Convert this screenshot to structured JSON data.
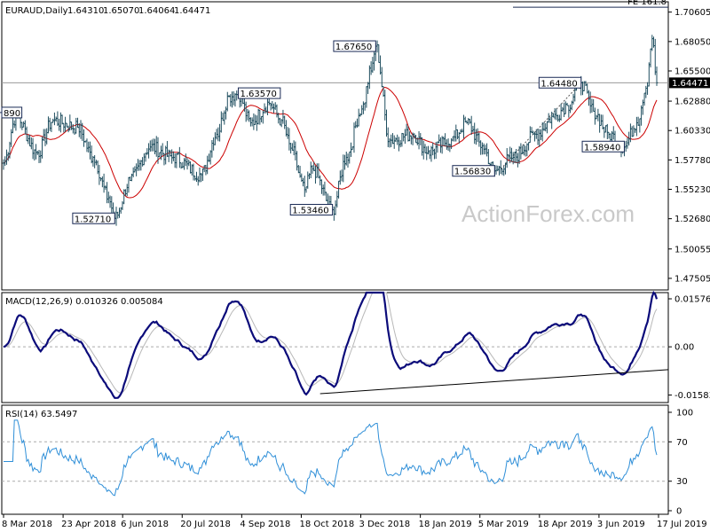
{
  "chart_data": [
    {
      "type": "bar",
      "style": "ohlc",
      "title": "EURAUD,Daily",
      "ohlc_header": [
        "1.64310",
        "1.65070",
        "1.64064",
        "1.64471"
      ],
      "ylim": [
        1.465,
        1.715
      ],
      "y_ticks": [
        "1.70605",
        "1.68050",
        "1.65500",
        "1.62880",
        "1.60330",
        "1.57780",
        "1.55230",
        "1.52680",
        "1.50055",
        "1.47505"
      ],
      "price_line": {
        "value": 1.64471,
        "label": "1.64471"
      },
      "fe_line": {
        "value": 1.7103,
        "label": "FE 161.8"
      },
      "moving_average_color": "#cc0000",
      "bar_color": "#1f4e5f",
      "x_ticks": [
        "8 Mar 2018",
        "23 Apr 2018",
        "6 Jun 2018",
        "20 Jul 2018",
        "4 Sep 2018",
        "18 Oct 2018",
        "3 Dec 2018",
        "18 Jan 2019",
        "5 Mar 2019",
        "18 Apr 2019",
        "3 Jun 2019",
        "17 Jul 2019"
      ],
      "price_anchors": [
        {
          "d": 0,
          "p": 1.575
        },
        {
          "d": 8,
          "p": 1.615
        },
        {
          "d": 22,
          "p": 1.584
        },
        {
          "d": 32,
          "p": 1.612
        },
        {
          "d": 48,
          "p": 1.606
        },
        {
          "d": 58,
          "p": 1.58
        },
        {
          "d": 68,
          "p": 1.545
        },
        {
          "d": 72,
          "p": 1.5271
        },
        {
          "d": 82,
          "p": 1.56
        },
        {
          "d": 95,
          "p": 1.589
        },
        {
          "d": 110,
          "p": 1.58
        },
        {
          "d": 128,
          "p": 1.565
        },
        {
          "d": 138,
          "p": 1.6
        },
        {
          "d": 146,
          "p": 1.633
        },
        {
          "d": 152,
          "p": 1.6357
        },
        {
          "d": 160,
          "p": 1.61
        },
        {
          "d": 172,
          "p": 1.627
        },
        {
          "d": 180,
          "p": 1.612
        },
        {
          "d": 186,
          "p": 1.588
        },
        {
          "d": 195,
          "p": 1.552
        },
        {
          "d": 200,
          "p": 1.57
        },
        {
          "d": 213,
          "p": 1.5346
        },
        {
          "d": 222,
          "p": 1.58
        },
        {
          "d": 232,
          "p": 1.622
        },
        {
          "d": 238,
          "p": 1.655
        },
        {
          "d": 241,
          "p": 1.6765
        },
        {
          "d": 250,
          "p": 1.595
        },
        {
          "d": 265,
          "p": 1.6
        },
        {
          "d": 275,
          "p": 1.585
        },
        {
          "d": 290,
          "p": 1.595
        },
        {
          "d": 300,
          "p": 1.61
        },
        {
          "d": 310,
          "p": 1.59
        },
        {
          "d": 318,
          "p": 1.5683
        },
        {
          "d": 330,
          "p": 1.58
        },
        {
          "d": 345,
          "p": 1.6
        },
        {
          "d": 356,
          "p": 1.615
        },
        {
          "d": 365,
          "p": 1.625
        },
        {
          "d": 374,
          "p": 1.6448
        },
        {
          "d": 382,
          "p": 1.62
        },
        {
          "d": 392,
          "p": 1.6
        },
        {
          "d": 402,
          "p": 1.589
        },
        {
          "d": 410,
          "p": 1.61
        },
        {
          "d": 416,
          "p": 1.64
        },
        {
          "d": 420,
          "p": 1.683
        },
        {
          "d": 423,
          "p": 1.64471
        }
      ],
      "annotations": [
        {
          "label": "890",
          "value": 1.6189,
          "d": -3,
          "align": "left"
        },
        {
          "label": "1.52710",
          "value": 1.5271,
          "d": 72,
          "align": "left"
        },
        {
          "label": "1.63570",
          "value": 1.6357,
          "d": 152,
          "align": "right"
        },
        {
          "label": "1.53460",
          "value": 1.5346,
          "d": 213,
          "align": "left"
        },
        {
          "label": "1.67650",
          "value": 1.6765,
          "d": 241,
          "align": "left"
        },
        {
          "label": "1.56830",
          "value": 1.5683,
          "d": 318,
          "align": "left"
        },
        {
          "label": "1.64480",
          "value": 1.6448,
          "d": 374,
          "align": "left"
        },
        {
          "label": "1.58940",
          "value": 1.5894,
          "d": 402,
          "align": "left"
        }
      ],
      "trendline": {
        "from": {
          "d": 322,
          "p": 1.57
        },
        "to": {
          "d": 374,
          "p": 1.6448
        }
      },
      "watermark": "ActionForex.com"
    },
    {
      "type": "line",
      "title": "MACD(12,26,9) 0.010326 0.005084",
      "ylim": [
        -0.0183,
        0.0178
      ],
      "y_ticks": [
        "0.015762",
        "0.00",
        "-0.015834"
      ],
      "macd_color": "#0b0b7a",
      "signal_color": "#b8b8b8",
      "trendline": {
        "from": {
          "d": 205,
          "p": -0.0154
        },
        "to": {
          "d": 427,
          "p": -0.0075
        }
      }
    },
    {
      "type": "line",
      "title": "RSI(14) 63.5497",
      "ylim": [
        0,
        100
      ],
      "y_ticks": [
        "100",
        "70",
        "30",
        "0"
      ],
      "levels": [
        70,
        30
      ],
      "line_color": "#2f8fd8"
    }
  ]
}
